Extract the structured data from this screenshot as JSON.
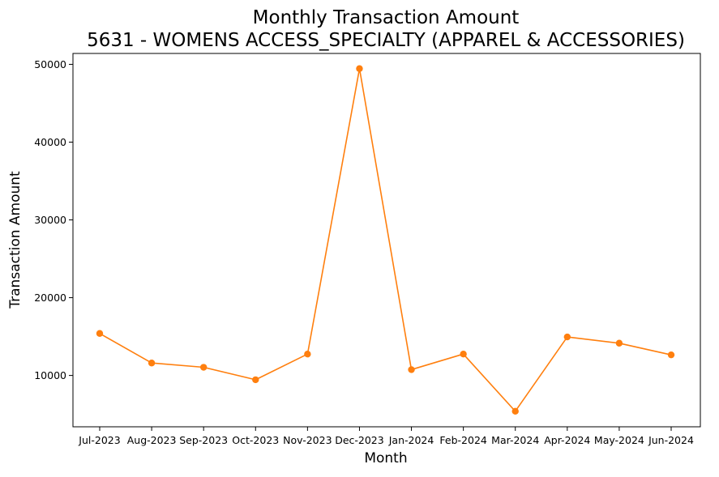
{
  "chart_data": {
    "type": "line",
    "title": "Monthly Transaction Amount",
    "subtitle": "5631 - WOMENS ACCESS_SPECIALTY (APPAREL & ACCESSORIES)",
    "xlabel": "Month",
    "ylabel": "Transaction Amount",
    "categories": [
      "Jul-2023",
      "Aug-2023",
      "Sep-2023",
      "Oct-2023",
      "Nov-2023",
      "Dec-2023",
      "Jan-2024",
      "Feb-2024",
      "Mar-2024",
      "Apr-2024",
      "May-2024",
      "Jun-2024"
    ],
    "series": [
      {
        "values": [
          15400,
          11600,
          11050,
          9450,
          12750,
          49450,
          10750,
          12750,
          5400,
          14950,
          14150,
          12650
        ],
        "color": "#ff7f0e"
      }
    ],
    "ylim": [
      3400,
      51400
    ],
    "yticks": [
      10000,
      20000,
      30000,
      40000,
      50000
    ],
    "ytick_labels": [
      "10000",
      "20000",
      "30000",
      "40000",
      "50000"
    ],
    "grid": false,
    "marker": "circle"
  }
}
